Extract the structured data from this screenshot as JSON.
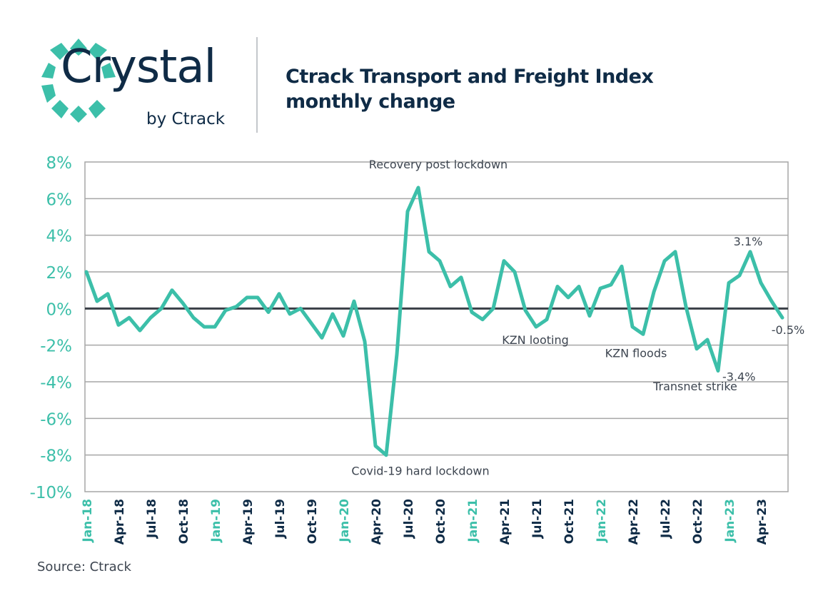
{
  "brand": {
    "name": "Crystal",
    "sub": "by Ctrack"
  },
  "title": {
    "line1": "Ctrack Transport and Freight Index",
    "line2": "monthly change"
  },
  "source": "Source: Ctrack",
  "colors": {
    "series": "#3cbfa9",
    "axis_label": "#3cbfa9",
    "navy": "#0f2b46",
    "grid": "#a6a6a6",
    "zero_line": "#3a3f47",
    "annotation": "#3d4550"
  },
  "chart_data": {
    "type": "line",
    "title": "Ctrack Transport and Freight Index monthly change",
    "xlabel": "",
    "ylabel": "",
    "ylim": [
      -10,
      8
    ],
    "yticks": [
      "8%",
      "6%",
      "4%",
      "2%",
      "0%",
      "-2%",
      "-4%",
      "-6%",
      "-8%",
      "-10%"
    ],
    "grid": true,
    "xtick_labels": [
      {
        "index": 0,
        "label": "Jan-18",
        "highlight": true
      },
      {
        "index": 3,
        "label": "Apr-18",
        "highlight": false
      },
      {
        "index": 6,
        "label": "Jul-18",
        "highlight": false
      },
      {
        "index": 9,
        "label": "Oct-18",
        "highlight": false
      },
      {
        "index": 12,
        "label": "Jan-19",
        "highlight": true
      },
      {
        "index": 15,
        "label": "Apr-19",
        "highlight": false
      },
      {
        "index": 18,
        "label": "Jul-19",
        "highlight": false
      },
      {
        "index": 21,
        "label": "Oct-19",
        "highlight": false
      },
      {
        "index": 24,
        "label": "Jan-20",
        "highlight": true
      },
      {
        "index": 27,
        "label": "Apr-20",
        "highlight": false
      },
      {
        "index": 30,
        "label": "Jul-20",
        "highlight": false
      },
      {
        "index": 33,
        "label": "Oct-20",
        "highlight": false
      },
      {
        "index": 36,
        "label": "Jan-21",
        "highlight": true
      },
      {
        "index": 39,
        "label": "Apr-21",
        "highlight": false
      },
      {
        "index": 42,
        "label": "Jul-21",
        "highlight": false
      },
      {
        "index": 45,
        "label": "Oct-21",
        "highlight": false
      },
      {
        "index": 48,
        "label": "Jan-22",
        "highlight": true
      },
      {
        "index": 51,
        "label": "Apr-22",
        "highlight": false
      },
      {
        "index": 54,
        "label": "Jul-22",
        "highlight": false
      },
      {
        "index": 57,
        "label": "Oct-22",
        "highlight": false
      },
      {
        "index": 60,
        "label": "Jan-23",
        "highlight": true
      },
      {
        "index": 63,
        "label": "Apr-23",
        "highlight": false
      }
    ],
    "series": [
      {
        "name": "Monthly change (%)",
        "values": [
          2.0,
          0.4,
          0.8,
          -0.9,
          -0.5,
          -1.2,
          -0.5,
          0.0,
          1.0,
          0.3,
          -0.5,
          -1.0,
          -1.0,
          -0.1,
          0.1,
          0.6,
          0.6,
          -0.2,
          0.8,
          -0.3,
          0.0,
          -0.8,
          -1.6,
          -0.3,
          -1.5,
          0.4,
          -1.8,
          -7.5,
          -8.0,
          -2.5,
          5.3,
          6.6,
          3.1,
          2.6,
          1.2,
          1.7,
          -0.2,
          -0.6,
          0.0,
          2.6,
          2.0,
          -0.1,
          -1.0,
          -0.6,
          1.2,
          0.6,
          1.2,
          -0.4,
          1.1,
          1.3,
          2.3,
          -1.0,
          -1.4,
          0.9,
          2.6,
          3.1,
          0.1,
          -2.2,
          -1.7,
          -3.4,
          1.4,
          1.8,
          3.1,
          1.4,
          0.4,
          -0.5
        ]
      }
    ],
    "annotations": [
      {
        "text": "Recovery post lockdown",
        "index": 31,
        "value": 6.6
      },
      {
        "text": "Covid-19 hard lockdown",
        "index": 28,
        "value": -8.0
      },
      {
        "text": "KZN looting",
        "index": 42,
        "value": -1.0
      },
      {
        "text": "KZN floods",
        "index": 52,
        "value": -1.4
      },
      {
        "text": "Transnet strike",
        "index": 57,
        "value": -2.2
      },
      {
        "text": "3.1%",
        "index": 62,
        "value": 3.1
      },
      {
        "text": "-3.4%",
        "index": 59,
        "value": -3.4
      },
      {
        "text": "-0.5%",
        "index": 65,
        "value": -0.5
      }
    ]
  }
}
